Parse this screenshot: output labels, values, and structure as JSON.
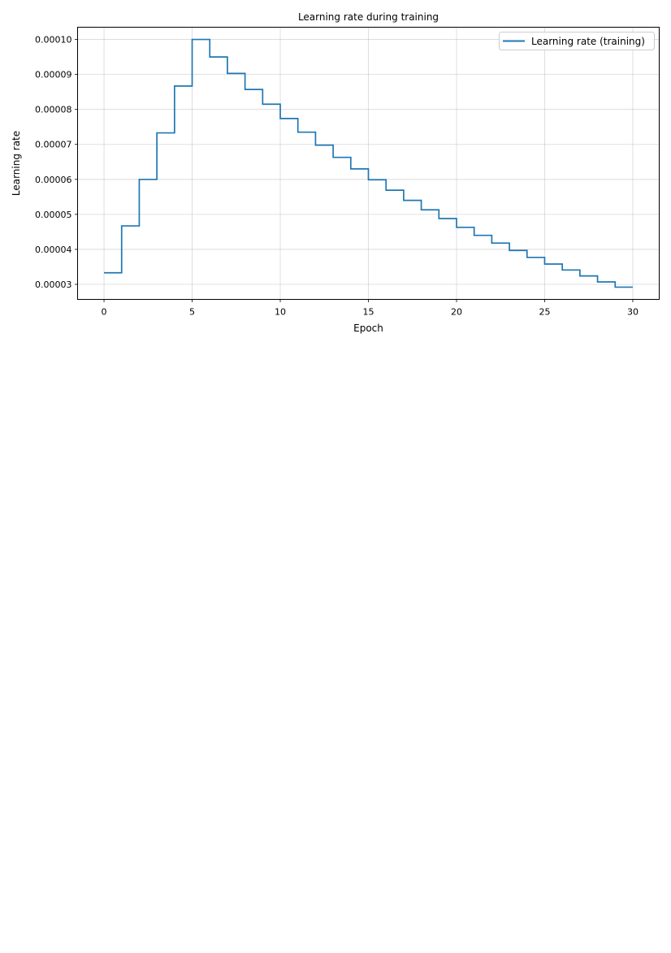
{
  "chart_data": {
    "type": "line",
    "drawstyle": "steps-post",
    "title": "Learning rate during training",
    "xlabel": "Epoch",
    "ylabel": "Learning rate",
    "xlim": [
      -1.5,
      31.5
    ],
    "ylim": [
      2.57e-05,
      0.0001035
    ],
    "x_ticks": [
      0,
      5,
      10,
      15,
      20,
      25,
      30
    ],
    "x_tick_labels": [
      "0",
      "5",
      "10",
      "15",
      "20",
      "25",
      "30"
    ],
    "y_ticks": [
      3e-05,
      4e-05,
      5e-05,
      6e-05,
      7e-05,
      8e-05,
      9e-05,
      0.0001
    ],
    "y_tick_labels": [
      "0.00003",
      "0.00004",
      "0.00005",
      "0.00006",
      "0.00007",
      "0.00008",
      "0.00009",
      "0.00010"
    ],
    "grid": true,
    "legend_position": "top-right",
    "series": [
      {
        "name": "Learning rate (training)",
        "color": "#1f77b4",
        "x": [
          0,
          1,
          2,
          3,
          4,
          5,
          6,
          7,
          8,
          9,
          10,
          11,
          12,
          13,
          14,
          15,
          16,
          17,
          18,
          19,
          20,
          21,
          22,
          23,
          24,
          25,
          26,
          27,
          28,
          29,
          30
        ],
        "y": [
          3.33e-05,
          4.67e-05,
          6e-05,
          7.33e-05,
          8.67e-05,
          0.0001,
          9.5e-05,
          9.03e-05,
          8.57e-05,
          8.15e-05,
          7.74e-05,
          7.35e-05,
          6.98e-05,
          6.63e-05,
          6.3e-05,
          5.99e-05,
          5.69e-05,
          5.4e-05,
          5.13e-05,
          4.88e-05,
          4.63e-05,
          4.4e-05,
          4.18e-05,
          3.97e-05,
          3.77e-05,
          3.58e-05,
          3.41e-05,
          3.24e-05,
          3.07e-05,
          2.92e-05,
          2.92e-05
        ]
      }
    ]
  }
}
